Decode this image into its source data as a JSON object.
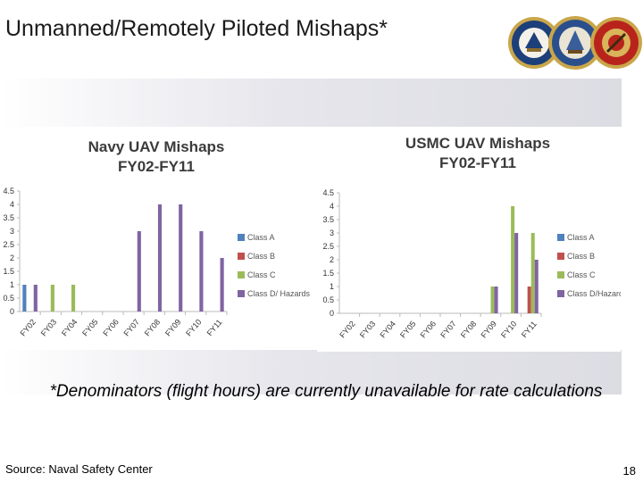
{
  "slide": {
    "title": "Unmanned/Remotely Piloted Mishaps*",
    "note": "*Denominators (flight hours) are currently unavailable for rate calculations",
    "source": "Source: Naval Safety Center",
    "page_number": "18"
  },
  "logos": [
    {
      "name": "navy-seal",
      "color": "#1d3f7a"
    },
    {
      "name": "department-of-navy-seal",
      "color": "#2b4f8c"
    },
    {
      "name": "marine-corps-seal",
      "color": "#b8241c"
    }
  ],
  "colors": {
    "class_a": "#4f81bd",
    "class_b": "#c0504d",
    "class_c": "#9bbb59",
    "class_d": "#8064a2"
  },
  "chart_data": [
    {
      "type": "bar",
      "title_line1": "Navy UAV Mishaps",
      "title_line2": "FY02-FY11",
      "categories": [
        "FY02",
        "FY03",
        "FY04",
        "FY05",
        "FY06",
        "FY07",
        "FY08",
        "FY09",
        "FY10",
        "FY11"
      ],
      "ylim": [
        0,
        4.5
      ],
      "yticks": [
        "0",
        "0.5",
        "1",
        "1.5",
        "2",
        "2.5",
        "3",
        "3.5",
        "4",
        "4.5"
      ],
      "series": [
        {
          "name": "Class A",
          "color": "#4f81bd",
          "values": [
            1,
            0,
            0,
            0,
            0,
            0,
            0,
            0,
            0,
            0
          ]
        },
        {
          "name": "Class B",
          "color": "#c0504d",
          "values": [
            0,
            0,
            0,
            0,
            0,
            0,
            0,
            0,
            0,
            0
          ]
        },
        {
          "name": "Class C",
          "color": "#9bbb59",
          "values": [
            0,
            1,
            1,
            0,
            0,
            0,
            0,
            0,
            0,
            0
          ]
        },
        {
          "name": "Class D/ Hazards",
          "color": "#8064a2",
          "values": [
            1,
            0,
            0,
            0,
            0,
            3,
            4,
            4,
            3,
            2
          ]
        }
      ],
      "legend_position": "right"
    },
    {
      "type": "bar",
      "title_line1": "USMC UAV Mishaps",
      "title_line2": "FY02-FY11",
      "categories": [
        "FY02",
        "FY03",
        "FY04",
        "FY05",
        "FY06",
        "FY07",
        "FY08",
        "FY09",
        "FY10",
        "FY11"
      ],
      "ylim": [
        0,
        4.5
      ],
      "yticks": [
        "0",
        "0.5",
        "1",
        "1.5",
        "2",
        "2.5",
        "3",
        "3.5",
        "4",
        "4.5"
      ],
      "series": [
        {
          "name": "Class A",
          "color": "#4f81bd",
          "values": [
            0,
            0,
            0,
            0,
            0,
            0,
            0,
            0,
            0,
            0
          ]
        },
        {
          "name": "Class B",
          "color": "#c0504d",
          "values": [
            0,
            0,
            0,
            0,
            0,
            0,
            0,
            0,
            0,
            1
          ]
        },
        {
          "name": "Class C",
          "color": "#9bbb59",
          "values": [
            0,
            0,
            0,
            0,
            0,
            0,
            0,
            1,
            4,
            3
          ]
        },
        {
          "name": "Class D/Hazards",
          "color": "#8064a2",
          "values": [
            0,
            0,
            0,
            0,
            0,
            0,
            0,
            1,
            3,
            2
          ]
        }
      ],
      "legend_position": "right"
    }
  ]
}
